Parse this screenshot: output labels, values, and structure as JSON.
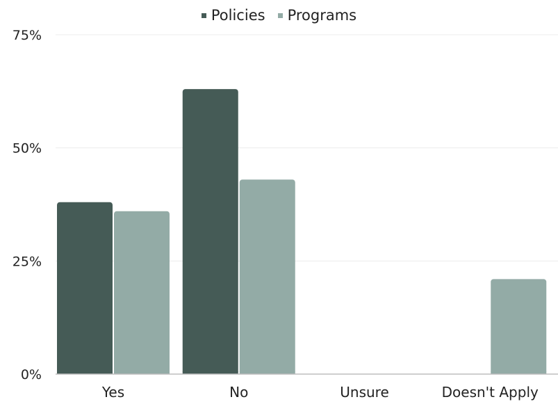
{
  "chart_data": {
    "type": "bar",
    "categories": [
      "Yes",
      "No",
      "Unsure",
      "Doesn't Apply"
    ],
    "series": [
      {
        "name": "Policies",
        "color": "#455b56",
        "values": [
          38,
          63,
          0,
          0
        ]
      },
      {
        "name": "Programs",
        "color": "#93aba6",
        "values": [
          36,
          43,
          0,
          21
        ]
      }
    ],
    "y_ticks": [
      "0%",
      "25%",
      "50%",
      "75%"
    ],
    "ylim": [
      0,
      75
    ],
    "grid": true,
    "legend_position": "top-center"
  }
}
